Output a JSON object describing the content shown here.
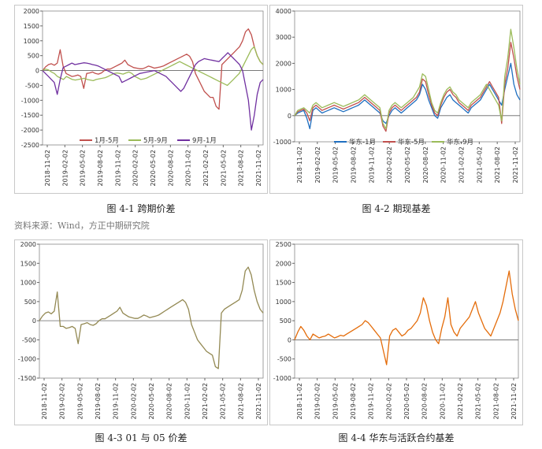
{
  "captions": {
    "fig1": "图 4-1  跨期价差",
    "fig2": "图 4-2  期现基差",
    "fig3": "图 4-3  01 与 05 价差",
    "fig4": "图 4-4  华东与活跃合约基差"
  },
  "source": "资料来源：Wind，方正中期研究院",
  "colors": {
    "red": "#c0504d",
    "green": "#9bbb59",
    "purple": "#7030a0",
    "blue": "#1f6fc0",
    "olive": "#938953",
    "orange": "#e46c0a"
  },
  "chart_data": [
    {
      "id": "fig1",
      "type": "line",
      "x_tick_labels": [
        "2018-11-02",
        "2019-02-02",
        "2019-05-02",
        "2019-08-02",
        "2019-11-02",
        "2020-02-02",
        "2020-05-02",
        "2020-08-02",
        "2020-11-02",
        "2021-02-02",
        "2021-05-02",
        "2021-08-02",
        "2021-11-02"
      ],
      "ylim": [
        -2500,
        2000
      ],
      "y_ticks": [
        -2500,
        -2000,
        -1500,
        -1000,
        -500,
        0,
        500,
        1000,
        1500,
        2000
      ],
      "legend_position": "bottom-center",
      "series": [
        {
          "name": "1月-5月",
          "color": "#c0504d",
          "values": [
            0,
            120,
            200,
            230,
            180,
            250,
            700,
            150,
            -100,
            -150,
            -200,
            -180,
            -150,
            -200,
            -600,
            -100,
            -80,
            -50,
            -100,
            -120,
            -80,
            0,
            50,
            50,
            100,
            150,
            200,
            250,
            350,
            200,
            150,
            100,
            80,
            60,
            60,
            100,
            150,
            120,
            80,
            100,
            120,
            150,
            200,
            250,
            300,
            350,
            400,
            450,
            500,
            550,
            480,
            300,
            -100,
            -300,
            -500,
            -700,
            -800,
            -900,
            -900,
            -1200,
            -1300,
            200,
            300,
            400,
            500,
            600,
            700,
            800,
            1000,
            1300,
            1400,
            1200,
            800,
            500,
            300,
            200
          ]
        },
        {
          "name": "5月-9月",
          "color": "#9bbb59",
          "values": [
            0,
            50,
            20,
            -50,
            -100,
            -200,
            -250,
            -300,
            -200,
            -250,
            -300,
            -320,
            -300,
            -280,
            -260,
            -300,
            -320,
            -340,
            -300,
            -280,
            -260,
            -240,
            -200,
            -150,
            -100,
            -80,
            -100,
            -120,
            -80,
            -50,
            -100,
            -200,
            -250,
            -300,
            -280,
            -250,
            -200,
            -150,
            -100,
            -50,
            0,
            50,
            100,
            150,
            200,
            250,
            300,
            250,
            200,
            150,
            100,
            50,
            0,
            -50,
            -100,
            -150,
            -200,
            -250,
            -300,
            -350,
            -400,
            -450,
            -500,
            -400,
            -300,
            -200,
            -100,
            100,
            300,
            500,
            700,
            800,
            500,
            300,
            200
          ]
        },
        {
          "name": "9月-1月",
          "color": "#7030a0",
          "values": [
            0,
            -100,
            -200,
            -300,
            -400,
            -800,
            -300,
            100,
            150,
            200,
            250,
            200,
            220,
            240,
            260,
            250,
            230,
            200,
            180,
            150,
            100,
            50,
            0,
            -50,
            -100,
            -150,
            -200,
            -400,
            -350,
            -300,
            -250,
            -200,
            -150,
            -100,
            -80,
            -60,
            -40,
            -20,
            0,
            -50,
            -100,
            -150,
            -200,
            -300,
            -400,
            -500,
            -600,
            -700,
            -600,
            -400,
            -200,
            0,
            200,
            300,
            350,
            400,
            380,
            360,
            340,
            320,
            300,
            400,
            500,
            600,
            500,
            400,
            300,
            200,
            0,
            -500,
            -1000,
            -2000,
            -1500,
            -800,
            -400,
            -300
          ]
        }
      ]
    },
    {
      "id": "fig2",
      "type": "line",
      "x_tick_labels": [
        "2018-11-02",
        "2019-02-02",
        "2019-05-02",
        "2019-08-02",
        "2019-11-02",
        "2020-02-02",
        "2020-05-02",
        "2020-08-02",
        "2020-11-02",
        "2021-02-02",
        "2021-05-02",
        "2021-08-02",
        "2021-11-02"
      ],
      "ylim": [
        -1000,
        4000
      ],
      "y_ticks": [
        -1000,
        0,
        1000,
        2000,
        3000,
        4000
      ],
      "legend_position": "bottom-center",
      "series": [
        {
          "name": "华东-1月",
          "color": "#1f6fc0",
          "values": [
            0,
            100,
            150,
            200,
            -100,
            -500,
            200,
            300,
            200,
            100,
            150,
            200,
            250,
            300,
            250,
            200,
            150,
            200,
            250,
            300,
            350,
            400,
            500,
            600,
            500,
            400,
            300,
            200,
            100,
            -200,
            -300,
            0,
            200,
            300,
            200,
            100,
            200,
            300,
            400,
            500,
            600,
            800,
            1200,
            1000,
            600,
            300,
            0,
            -100,
            300,
            500,
            700,
            800,
            600,
            500,
            400,
            300,
            200,
            100,
            300,
            400,
            500,
            600,
            800,
            1000,
            1200,
            1000,
            800,
            600,
            400,
            1000,
            1500,
            2000,
            1200,
            800,
            600
          ]
        },
        {
          "name": "华东-5月",
          "color": "#c0504d",
          "values": [
            0,
            150,
            200,
            250,
            100,
            -200,
            300,
            400,
            300,
            200,
            250,
            300,
            350,
            400,
            350,
            300,
            250,
            300,
            350,
            400,
            450,
            500,
            600,
            700,
            600,
            500,
            400,
            300,
            200,
            -400,
            -600,
            100,
            300,
            400,
            300,
            200,
            300,
            400,
            500,
            600,
            700,
            900,
            1400,
            1300,
            800,
            400,
            100,
            0,
            400,
            700,
            900,
            1000,
            800,
            700,
            500,
            400,
            300,
            200,
            400,
            500,
            600,
            700,
            900,
            1100,
            1300,
            1100,
            900,
            700,
            -300,
            1200,
            1800,
            2800,
            2200,
            1500,
            1000
          ]
        },
        {
          "name": "华东-9月",
          "color": "#9bbb59",
          "values": [
            0,
            200,
            250,
            300,
            200,
            100,
            400,
            500,
            400,
            300,
            350,
            400,
            450,
            500,
            450,
            400,
            350,
            400,
            450,
            500,
            550,
            600,
            700,
            800,
            700,
            600,
            500,
            400,
            300,
            -300,
            -500,
            200,
            400,
            500,
            400,
            300,
            400,
            500,
            600,
            700,
            900,
            1100,
            1600,
            1500,
            1000,
            500,
            200,
            100,
            500,
            800,
            1000,
            1100,
            900,
            800,
            600,
            500,
            400,
            300,
            500,
            600,
            700,
            800,
            1000,
            1200,
            1000,
            800,
            600,
            400,
            -200,
            1500,
            2200,
            3300,
            2600,
            1800,
            1200
          ]
        }
      ]
    },
    {
      "id": "fig3",
      "type": "line",
      "x_tick_labels": [
        "2018-11-02",
        "2019-02-02",
        "2019-05-02",
        "2019-08-02",
        "2019-11-02",
        "2020-02-02",
        "2020-05-02",
        "2020-08-02",
        "2020-11-02",
        "2021-02-02",
        "2021-05-02",
        "2021-08-02",
        "2021-11-02"
      ],
      "ylim": [
        -1500,
        2000
      ],
      "y_ticks": [
        -1500,
        -1000,
        -500,
        0,
        500,
        1000,
        1500,
        2000
      ],
      "series": [
        {
          "name": "",
          "color": "#938953",
          "values": [
            0,
            120,
            200,
            230,
            180,
            250,
            750,
            -150,
            -150,
            -200,
            -180,
            -150,
            -200,
            -600,
            -100,
            -80,
            -50,
            -100,
            -120,
            -80,
            0,
            50,
            50,
            100,
            150,
            200,
            250,
            350,
            200,
            150,
            100,
            80,
            60,
            60,
            100,
            150,
            120,
            80,
            100,
            120,
            150,
            200,
            250,
            300,
            350,
            400,
            450,
            500,
            550,
            480,
            300,
            -100,
            -300,
            -500,
            -600,
            -700,
            -800,
            -850,
            -900,
            -1200,
            -1250,
            200,
            300,
            350,
            400,
            450,
            500,
            550,
            800,
            1300,
            1400,
            1200,
            800,
            500,
            300,
            200
          ]
        }
      ]
    },
    {
      "id": "fig4",
      "type": "line",
      "x_tick_labels": [
        "2018-11-02",
        "2019-02-02",
        "2019-05-02",
        "2019-08-02",
        "2019-11-02",
        "2020-02-02",
        "2020-05-02",
        "2020-08-02",
        "2020-11-02",
        "2021-02-02",
        "2021-05-02",
        "2021-08-02",
        "2021-11-02"
      ],
      "ylim": [
        -1000,
        2500
      ],
      "y_ticks": [
        -1000,
        -500,
        0,
        500,
        1000,
        1500,
        2000,
        2500
      ],
      "series": [
        {
          "name": "",
          "color": "#e46c0a",
          "values": [
            0,
            200,
            350,
            250,
            100,
            0,
            150,
            100,
            50,
            80,
            100,
            150,
            100,
            50,
            80,
            120,
            100,
            150,
            200,
            250,
            300,
            350,
            400,
            500,
            450,
            350,
            250,
            150,
            50,
            -300,
            -650,
            100,
            250,
            300,
            200,
            100,
            150,
            250,
            300,
            400,
            500,
            700,
            1100,
            900,
            500,
            200,
            0,
            -100,
            300,
            600,
            1100,
            400,
            200,
            100,
            300,
            400,
            500,
            600,
            800,
            1000,
            700,
            500,
            300,
            200,
            100,
            300,
            500,
            700,
            1000,
            1400,
            1800,
            1200,
            800,
            500
          ]
        }
      ]
    }
  ]
}
